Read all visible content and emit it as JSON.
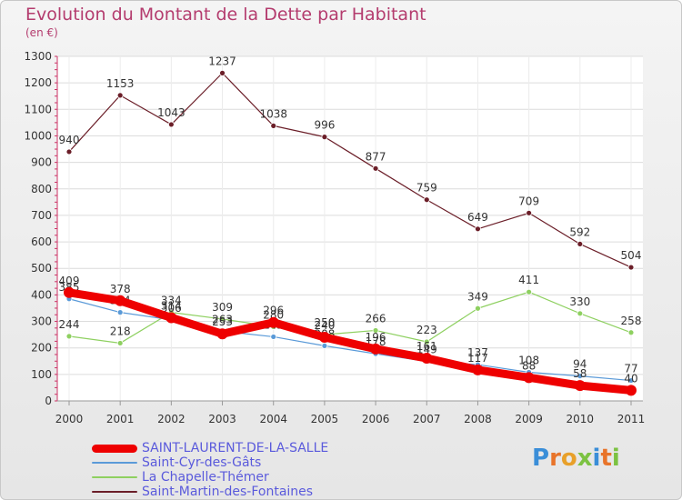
{
  "title": "Evolution du Montant de la Dette par Habitant",
  "unit_label": "(en €)",
  "logo": {
    "letters": [
      "P",
      "r",
      "o",
      "x",
      "i",
      "t",
      "i"
    ],
    "colors": [
      "#3a8ed8",
      "#e8742a",
      "#e8a02a",
      "#7cc242",
      "#3a8ed8",
      "#e8742a",
      "#7cc242"
    ]
  },
  "chart_data": {
    "type": "line",
    "title": "Evolution du Montant de la Dette par Habitant",
    "ylabel": "(en €)",
    "xlabel": "",
    "x": [
      "2000",
      "2001",
      "2002",
      "2003",
      "2004",
      "2005",
      "2006",
      "2007",
      "2008",
      "2009",
      "2010",
      "2011"
    ],
    "ylim": [
      0,
      1300
    ],
    "yticks": [
      0,
      100,
      200,
      300,
      400,
      500,
      600,
      700,
      800,
      900,
      1000,
      1100,
      1200,
      1300
    ],
    "grid": true,
    "legend_position": "bottom-left",
    "series": [
      {
        "name": "Saint-Martin-des-Fontaines",
        "color": "#6b1e28",
        "values": [
          940,
          1153,
          1043,
          1237,
          1038,
          996,
          877,
          759,
          649,
          709,
          592,
          504
        ],
        "width": 1.2,
        "marker": 3
      },
      {
        "name": "La Chapelle-Thémer",
        "color": "#8ed060",
        "values": [
          244,
          218,
          334,
          309,
          280,
          250,
          266,
          223,
          349,
          411,
          330,
          258
        ],
        "width": 1.2,
        "marker": 3
      },
      {
        "name": "Saint-Cyr-des-Gâts",
        "color": "#5a9ad8",
        "values": [
          385,
          334,
          306,
          263,
          242,
          208,
          178,
          149,
          137,
          108,
          94,
          77
        ],
        "width": 1.2,
        "marker": 3
      },
      {
        "name": "SAINT-LAURENT-DE-LA-SALLE",
        "color": "#ee0000",
        "values": [
          409,
          378,
          314,
          253,
          296,
          240,
          196,
          161,
          117,
          88,
          58,
          40
        ],
        "width": 9,
        "marker": 6
      }
    ]
  }
}
